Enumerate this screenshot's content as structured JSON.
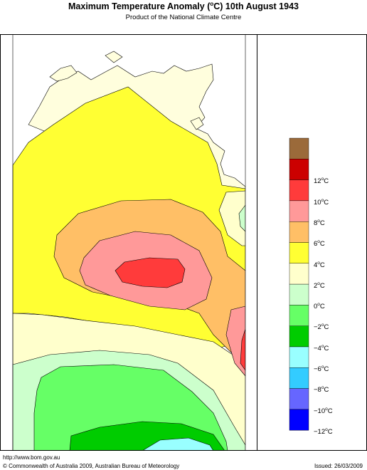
{
  "header": {
    "title_pre": "Maximum Temperature Anomaly (",
    "title_deg": "o",
    "title_post": "C)  10th August 1943",
    "subtitle": "Product of the National Climate Centre"
  },
  "legend": {
    "degree_symbol": "o",
    "unit": "C",
    "items": [
      {
        "label": "",
        "color": "#9b6a3a"
      },
      {
        "label": "12",
        "color": "#cc0000"
      },
      {
        "label": "10",
        "color": "#ff3b3b"
      },
      {
        "label": "8",
        "color": "#ff9999"
      },
      {
        "label": "6",
        "color": "#ffbf66"
      },
      {
        "label": "4",
        "color": "#ffff33"
      },
      {
        "label": "2",
        "color": "#ffffcc"
      },
      {
        "label": "0",
        "color": "#ccffcc"
      },
      {
        "label": "−2",
        "color": "#66ff66"
      },
      {
        "label": "−4",
        "color": "#00cc00"
      },
      {
        "label": "−6",
        "color": "#99ffff"
      },
      {
        "label": "−8",
        "color": "#33ccff"
      },
      {
        "label": "−10",
        "color": "#6666ff"
      },
      {
        "label": "−12",
        "color": "#0000ff"
      }
    ]
  },
  "footer": {
    "url": "http://www.bom.gov.au",
    "copyright": "© Commonwealth of Australia 2009, Australian Bureau of Meteorology",
    "issued": "Issued: 26/03/2009"
  },
  "colors": {
    "land_outside": "#fffedd",
    "ocean": "#ffffff",
    "frame": "#000000"
  }
}
